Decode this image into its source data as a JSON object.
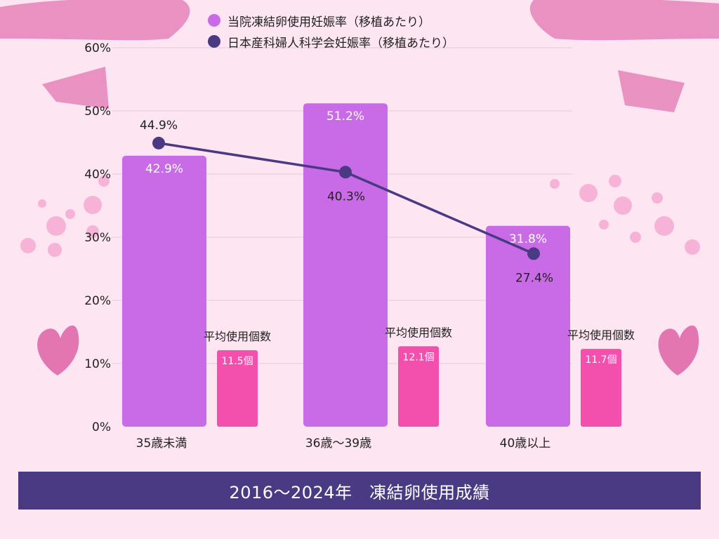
{
  "colors": {
    "background": "#fde5f1",
    "clinic_bar": "#c96ae6",
    "avg_bar": "#f34fad",
    "national_line": "#4a3a84",
    "footer": "#4a3a84",
    "decoration": "#d9509b"
  },
  "legend": {
    "clinic": "当院凍結卵使用妊娠率（移植あたり）",
    "national": "日本産科婦人科学会妊娠率（移植あたり）"
  },
  "avg_label": "平均使用個数",
  "footer_title": "2016～2024年　凍結卵使用成績",
  "chart_data": {
    "type": "bar",
    "title": "",
    "xlabel": "",
    "ylabel": "",
    "ylim": [
      0,
      60
    ],
    "y_ticks": [
      "0%",
      "10%",
      "20%",
      "30%",
      "40%",
      "50%",
      "60%"
    ],
    "grid": true,
    "legend_position": "top",
    "categories": [
      "35歳未満",
      "36歳～39歳",
      "40歳以上"
    ],
    "series": [
      {
        "name": "当院凍結卵使用妊娠率（移植あたり）",
        "kind": "bar",
        "values": [
          42.9,
          51.2,
          31.8
        ],
        "labels": [
          "42.9%",
          "51.2%",
          "31.8%"
        ]
      },
      {
        "name": "日本産科婦人科学会妊娠率（移植あたり）",
        "kind": "line",
        "values": [
          44.9,
          40.3,
          27.4
        ],
        "labels": [
          "44.9%",
          "40.3%",
          "27.4%"
        ]
      },
      {
        "name": "平均使用個数",
        "kind": "bar",
        "values": [
          11.5,
          12.1,
          11.7
        ],
        "labels": [
          "11.5個",
          "12.1個",
          "11.7個"
        ]
      }
    ]
  }
}
